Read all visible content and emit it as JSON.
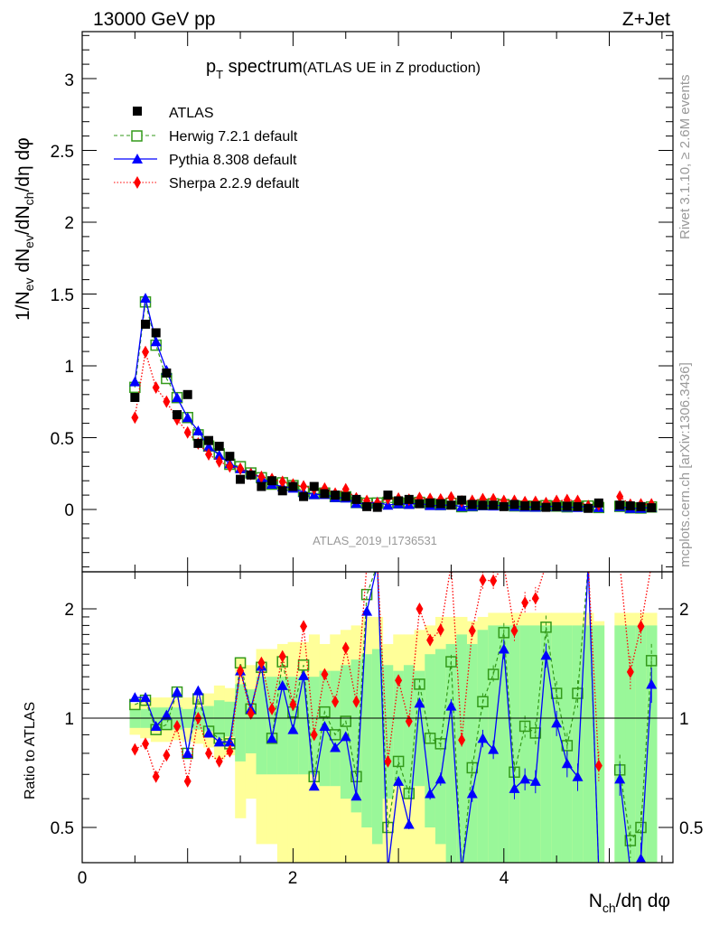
{
  "header": {
    "energy": "13000 GeV pp",
    "process": "Z+Jet"
  },
  "side": {
    "rivet": "Rivet 3.1.10, ≥ 2.6M events",
    "mcplots": "mcplots.cern.ch [arXiv:1306.3436]"
  },
  "watermark": "ATLAS_2019_I1736531",
  "colors": {
    "atlas": "#000000",
    "herwig": "#339a1a",
    "pythia": "#0000ff",
    "sherpa": "#ff0000",
    "band_inner": "#99f799",
    "band_outer": "#ffff99"
  },
  "chart_data": {
    "type": "line",
    "title": {
      "main": "p",
      "sub": "T",
      "rest": " spectrum",
      "note": "(ATLAS UE in Z production)"
    },
    "xlabel": {
      "a": "N",
      "sub": "ch",
      "b": "/dη dφ"
    },
    "ylabel": {
      "p1": "1/N",
      "s1": "ev",
      "p2": " dN",
      "s2": "ev",
      "p3": "/dN",
      "s3": "ch",
      "p4": "/dη dφ"
    },
    "ratio_ylabel": "Ratio to ATLAS",
    "xlim": [
      0,
      5.6
    ],
    "ylim": [
      -0.43,
      3.33
    ],
    "ratio_ylim": [
      0.4,
      2.53
    ],
    "ratio_scale": "log",
    "x_ticks": [
      "0",
      "2",
      "4"
    ],
    "y_ticks": [
      "0",
      "0.5",
      "1",
      "1.5",
      "2",
      "2.5",
      "3"
    ],
    "ratio_ticks": [
      "0.5",
      "1",
      "2"
    ],
    "legend_position": "top-left",
    "x": [
      0.5,
      0.6,
      0.7,
      0.8,
      0.9,
      1.0,
      1.1,
      1.2,
      1.3,
      1.4,
      1.5,
      1.6,
      1.7,
      1.8,
      1.9,
      2.0,
      2.1,
      2.2,
      2.3,
      2.4,
      2.5,
      2.6,
      2.7,
      2.8,
      2.9,
      3.0,
      3.1,
      3.2,
      3.3,
      3.4,
      3.5,
      3.6,
      3.7,
      3.8,
      3.9,
      4.0,
      4.1,
      4.2,
      4.3,
      4.4,
      4.5,
      4.6,
      4.7,
      4.8,
      4.9,
      5.0,
      5.1,
      5.2,
      5.3,
      5.4
    ],
    "data": {
      "name": "ATLAS",
      "values": [
        0.78,
        1.29,
        1.23,
        0.95,
        0.66,
        0.8,
        0.46,
        0.48,
        0.44,
        0.37,
        0.21,
        0.24,
        0.16,
        0.2,
        0.13,
        0.16,
        0.09,
        0.16,
        0.11,
        0.1,
        0.09,
        0.07,
        0.02,
        0.015,
        0.1,
        0.06,
        0.07,
        0.04,
        0.045,
        0.04,
        0.03,
        0.065,
        0.035,
        0.03,
        0.03,
        0.02,
        0.035,
        0.025,
        0.025,
        0.015,
        0.02,
        0.022,
        0.02,
        0.008,
        0.045,
        null,
        0.03,
        0.025,
        0.02,
        0.012
      ]
    },
    "series": [
      {
        "name": "Herwig 7.2.1 default",
        "key": "herwig",
        "ratio": [
          1.09,
          1.12,
          0.93,
          0.96,
          1.18,
          0.8,
          1.13,
          0.92,
          0.88,
          0.85,
          1.42,
          1.06,
          1.38,
          0.88,
          1.43,
          1.04,
          1.4,
          0.69,
          1.04,
          0.9,
          0.98,
          0.69,
          2.19,
          3.0,
          0.5,
          0.76,
          0.62,
          1.24,
          0.88,
          0.85,
          1.43,
          0.3,
          0.73,
          1.11,
          1.32,
          1.72,
          0.71,
          0.95,
          0.91,
          1.78,
          1.17,
          0.84,
          1.17,
          3.0,
          0.3,
          null,
          0.72,
          0.46,
          0.5,
          1.44
        ]
      },
      {
        "name": "Pythia 8.308 default",
        "key": "pythia",
        "ratio": [
          1.14,
          1.14,
          0.95,
          1.02,
          1.18,
          0.8,
          1.19,
          0.91,
          0.86,
          0.86,
          1.35,
          1.06,
          1.39,
          0.88,
          1.23,
          0.93,
          1.31,
          0.65,
          0.95,
          0.83,
          0.89,
          0.61,
          1.97,
          3.5,
          0.3,
          0.67,
          0.51,
          1.1,
          0.62,
          0.68,
          1.08,
          0.3,
          0.62,
          0.88,
          0.82,
          1.55,
          0.64,
          0.68,
          0.67,
          1.49,
          0.97,
          0.75,
          0.69,
          3.0,
          0.3,
          null,
          0.68,
          0.3,
          0.41,
          1.24
        ]
      },
      {
        "name": "Sherpa 2.2.9 default",
        "key": "sherpa",
        "ratio": [
          0.82,
          0.85,
          0.69,
          0.79,
          0.95,
          0.67,
          1.0,
          0.8,
          0.76,
          0.81,
          1.35,
          1.03,
          1.42,
          1.06,
          1.48,
          1.09,
          1.79,
          0.9,
          1.32,
          1.11,
          1.56,
          1.11,
          3.0,
          3.0,
          0.76,
          1.27,
          0.98,
          2.0,
          1.64,
          1.75,
          2.8,
          0.87,
          1.74,
          2.4,
          2.39,
          3.0,
          1.74,
          2.08,
          2.14,
          3.0,
          3.0,
          3.0,
          3.0,
          3.0,
          0.74,
          null,
          3.0,
          1.34,
          1.79,
          3.0
        ]
      }
    ],
    "band_inner_rel_err": [
      0.06,
      0.06,
      0.07,
      0.07,
      0.07,
      0.06,
      0.07,
      0.08,
      0.12,
      0.11,
      0.24,
      0.2,
      0.3,
      0.3,
      0.3,
      0.3,
      0.3,
      0.3,
      0.35,
      0.35,
      0.4,
      0.45,
      0.5,
      0.55,
      0.4,
      0.35,
      0.4,
      0.35,
      0.5,
      0.55,
      0.6,
      0.7,
      0.6,
      0.75,
      0.8,
      0.8,
      0.8,
      0.8,
      0.8,
      0.8,
      0.8,
      0.8,
      0.8,
      0.8,
      0.8,
      null,
      0.8,
      0.8,
      0.8,
      0.8
    ],
    "band_outer_rel_err": [
      0.1,
      0.12,
      0.14,
      0.14,
      0.13,
      0.14,
      0.15,
      0.17,
      0.23,
      0.21,
      0.47,
      0.4,
      0.55,
      0.55,
      0.6,
      0.62,
      0.62,
      0.7,
      0.6,
      0.7,
      0.75,
      0.8,
      0.9,
      0.9,
      0.6,
      0.7,
      0.7,
      0.75,
      0.8,
      0.9,
      0.9,
      0.9,
      0.85,
      0.9,
      0.95,
      0.95,
      0.95,
      0.95,
      0.95,
      0.95,
      0.95,
      0.95,
      0.95,
      0.95,
      0.85,
      null,
      0.95,
      0.95,
      0.95,
      0.95
    ]
  }
}
